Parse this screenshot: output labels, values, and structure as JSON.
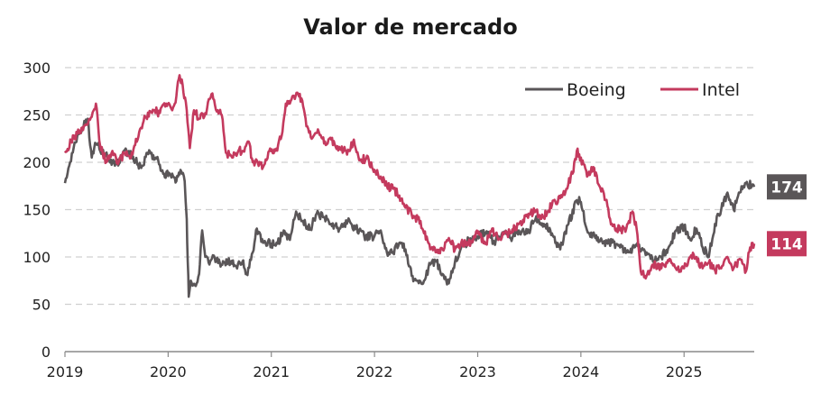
{
  "chart_data": {
    "type": "line",
    "title": "Valor de mercado",
    "xlabel": "",
    "ylabel": "",
    "ylim": [
      0,
      300
    ],
    "yticks": [
      0,
      50,
      100,
      150,
      200,
      250,
      300
    ],
    "xlim": [
      2019.0,
      2025.68
    ],
    "xticks": [
      "2019",
      "2020",
      "2021",
      "2022",
      "2023",
      "2024",
      "2025"
    ],
    "grid": true,
    "legend_position": "top-right",
    "series": [
      {
        "name": "Boeing",
        "color": "#5a5658",
        "end_label": "174",
        "points": [
          [
            2019.0,
            178
          ],
          [
            2019.05,
            200
          ],
          [
            2019.12,
            228
          ],
          [
            2019.18,
            238
          ],
          [
            2019.22,
            246
          ],
          [
            2019.26,
            205
          ],
          [
            2019.3,
            220
          ],
          [
            2019.36,
            212
          ],
          [
            2019.42,
            204
          ],
          [
            2019.5,
            198
          ],
          [
            2019.58,
            213
          ],
          [
            2019.66,
            206
          ],
          [
            2019.74,
            194
          ],
          [
            2019.8,
            210
          ],
          [
            2019.88,
            205
          ],
          [
            2019.96,
            188
          ],
          [
            2020.04,
            188
          ],
          [
            2020.08,
            180
          ],
          [
            2020.12,
            192
          ],
          [
            2020.16,
            180
          ],
          [
            2020.18,
            140
          ],
          [
            2020.19,
            95
          ],
          [
            2020.2,
            58
          ],
          [
            2020.22,
            75
          ],
          [
            2020.26,
            70
          ],
          [
            2020.3,
            82
          ],
          [
            2020.33,
            128
          ],
          [
            2020.36,
            100
          ],
          [
            2020.4,
            92
          ],
          [
            2020.45,
            100
          ],
          [
            2020.5,
            94
          ],
          [
            2020.58,
            95
          ],
          [
            2020.66,
            90
          ],
          [
            2020.72,
            95
          ],
          [
            2020.76,
            82
          ],
          [
            2020.82,
            105
          ],
          [
            2020.86,
            130
          ],
          [
            2020.92,
            115
          ],
          [
            2021.0,
            114
          ],
          [
            2021.06,
            114
          ],
          [
            2021.12,
            128
          ],
          [
            2021.18,
            118
          ],
          [
            2021.24,
            148
          ],
          [
            2021.3,
            138
          ],
          [
            2021.38,
            130
          ],
          [
            2021.44,
            146
          ],
          [
            2021.5,
            142
          ],
          [
            2021.58,
            135
          ],
          [
            2021.66,
            130
          ],
          [
            2021.74,
            138
          ],
          [
            2021.82,
            130
          ],
          [
            2021.9,
            122
          ],
          [
            2022.0,
            122
          ],
          [
            2022.06,
            128
          ],
          [
            2022.12,
            105
          ],
          [
            2022.18,
            105
          ],
          [
            2022.24,
            115
          ],
          [
            2022.3,
            108
          ],
          [
            2022.36,
            80
          ],
          [
            2022.42,
            75
          ],
          [
            2022.48,
            75
          ],
          [
            2022.54,
            92
          ],
          [
            2022.6,
            95
          ],
          [
            2022.66,
            82
          ],
          [
            2022.72,
            72
          ],
          [
            2022.78,
            95
          ],
          [
            2022.84,
            110
          ],
          [
            2022.92,
            118
          ],
          [
            2023.0,
            122
          ],
          [
            2023.08,
            126
          ],
          [
            2023.16,
            115
          ],
          [
            2023.24,
            126
          ],
          [
            2023.32,
            120
          ],
          [
            2023.4,
            128
          ],
          [
            2023.48,
            125
          ],
          [
            2023.56,
            140
          ],
          [
            2023.64,
            135
          ],
          [
            2023.72,
            125
          ],
          [
            2023.8,
            108
          ],
          [
            2023.88,
            135
          ],
          [
            2023.96,
            160
          ],
          [
            2024.0,
            158
          ],
          [
            2024.06,
            128
          ],
          [
            2024.14,
            120
          ],
          [
            2024.22,
            115
          ],
          [
            2024.3,
            115
          ],
          [
            2024.38,
            110
          ],
          [
            2024.46,
            105
          ],
          [
            2024.54,
            112
          ],
          [
            2024.62,
            106
          ],
          [
            2024.7,
            95
          ],
          [
            2024.78,
            100
          ],
          [
            2024.86,
            112
          ],
          [
            2024.92,
            128
          ],
          [
            2025.0,
            132
          ],
          [
            2025.06,
            118
          ],
          [
            2025.12,
            130
          ],
          [
            2025.18,
            110
          ],
          [
            2025.24,
            100
          ],
          [
            2025.3,
            135
          ],
          [
            2025.36,
            150
          ],
          [
            2025.42,
            168
          ],
          [
            2025.48,
            150
          ],
          [
            2025.54,
            168
          ],
          [
            2025.6,
            178
          ],
          [
            2025.68,
            174
          ]
        ]
      },
      {
        "name": "Intel",
        "color": "#c43a5e",
        "end_label": "114",
        "points": [
          [
            2019.0,
            210
          ],
          [
            2019.06,
            222
          ],
          [
            2019.12,
            230
          ],
          [
            2019.2,
            240
          ],
          [
            2019.26,
            248
          ],
          [
            2019.3,
            262
          ],
          [
            2019.34,
            218
          ],
          [
            2019.4,
            200
          ],
          [
            2019.46,
            212
          ],
          [
            2019.52,
            200
          ],
          [
            2019.58,
            210
          ],
          [
            2019.64,
            205
          ],
          [
            2019.72,
            232
          ],
          [
            2019.78,
            248
          ],
          [
            2019.86,
            255
          ],
          [
            2019.92,
            252
          ],
          [
            2019.98,
            262
          ],
          [
            2020.04,
            255
          ],
          [
            2020.08,
            270
          ],
          [
            2020.11,
            292
          ],
          [
            2020.14,
            282
          ],
          [
            2020.18,
            255
          ],
          [
            2020.21,
            215
          ],
          [
            2020.25,
            255
          ],
          [
            2020.3,
            246
          ],
          [
            2020.36,
            252
          ],
          [
            2020.42,
            272
          ],
          [
            2020.48,
            255
          ],
          [
            2020.52,
            250
          ],
          [
            2020.56,
            210
          ],
          [
            2020.62,
            205
          ],
          [
            2020.68,
            212
          ],
          [
            2020.72,
            212
          ],
          [
            2020.78,
            222
          ],
          [
            2020.82,
            200
          ],
          [
            2020.86,
            202
          ],
          [
            2020.92,
            195
          ],
          [
            2020.98,
            212
          ],
          [
            2021.04,
            212
          ],
          [
            2021.1,
            228
          ],
          [
            2021.14,
            262
          ],
          [
            2021.18,
            262
          ],
          [
            2021.22,
            270
          ],
          [
            2021.26,
            272
          ],
          [
            2021.3,
            265
          ],
          [
            2021.34,
            238
          ],
          [
            2021.4,
            226
          ],
          [
            2021.46,
            232
          ],
          [
            2021.52,
            222
          ],
          [
            2021.58,
            224
          ],
          [
            2021.64,
            217
          ],
          [
            2021.7,
            212
          ],
          [
            2021.76,
            212
          ],
          [
            2021.8,
            224
          ],
          [
            2021.86,
            202
          ],
          [
            2021.92,
            204
          ],
          [
            2022.0,
            192
          ],
          [
            2022.06,
            185
          ],
          [
            2022.12,
            175
          ],
          [
            2022.18,
            172
          ],
          [
            2022.24,
            165
          ],
          [
            2022.3,
            152
          ],
          [
            2022.36,
            145
          ],
          [
            2022.42,
            140
          ],
          [
            2022.48,
            125
          ],
          [
            2022.54,
            108
          ],
          [
            2022.6,
            105
          ],
          [
            2022.66,
            108
          ],
          [
            2022.72,
            120
          ],
          [
            2022.78,
            108
          ],
          [
            2022.84,
            115
          ],
          [
            2022.9,
            112
          ],
          [
            2022.96,
            120
          ],
          [
            2023.0,
            125
          ],
          [
            2023.08,
            115
          ],
          [
            2023.14,
            130
          ],
          [
            2023.2,
            118
          ],
          [
            2023.26,
            125
          ],
          [
            2023.32,
            125
          ],
          [
            2023.4,
            135
          ],
          [
            2023.48,
            145
          ],
          [
            2023.56,
            148
          ],
          [
            2023.64,
            142
          ],
          [
            2023.72,
            155
          ],
          [
            2023.8,
            162
          ],
          [
            2023.86,
            172
          ],
          [
            2023.92,
            188
          ],
          [
            2023.96,
            212
          ],
          [
            2024.0,
            205
          ],
          [
            2024.06,
            185
          ],
          [
            2024.12,
            195
          ],
          [
            2024.18,
            175
          ],
          [
            2024.24,
            160
          ],
          [
            2024.3,
            135
          ],
          [
            2024.38,
            128
          ],
          [
            2024.44,
            130
          ],
          [
            2024.5,
            148
          ],
          [
            2024.54,
            130
          ],
          [
            2024.58,
            85
          ],
          [
            2024.62,
            80
          ],
          [
            2024.7,
            92
          ],
          [
            2024.78,
            88
          ],
          [
            2024.86,
            98
          ],
          [
            2024.92,
            88
          ],
          [
            2025.0,
            88
          ],
          [
            2025.06,
            100
          ],
          [
            2025.12,
            100
          ],
          [
            2025.18,
            88
          ],
          [
            2025.24,
            94
          ],
          [
            2025.3,
            86
          ],
          [
            2025.36,
            88
          ],
          [
            2025.42,
            100
          ],
          [
            2025.48,
            88
          ],
          [
            2025.54,
            98
          ],
          [
            2025.6,
            85
          ],
          [
            2025.64,
            110
          ],
          [
            2025.68,
            114
          ]
        ]
      }
    ]
  }
}
